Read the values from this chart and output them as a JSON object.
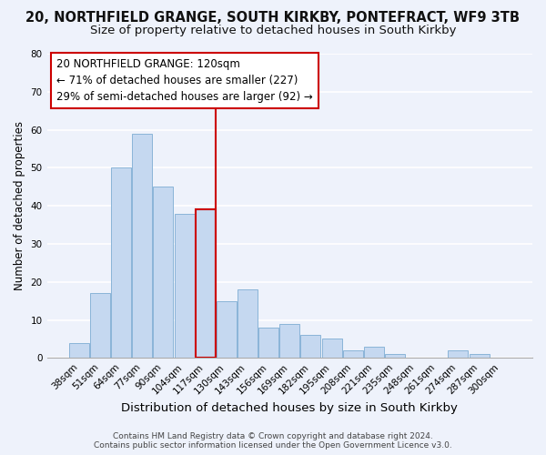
{
  "title_line1": "20, NORTHFIELD GRANGE, SOUTH KIRKBY, PONTEFRACT, WF9 3TB",
  "title_line2": "Size of property relative to detached houses in South Kirkby",
  "xlabel": "Distribution of detached houses by size in South Kirkby",
  "ylabel": "Number of detached properties",
  "bar_labels": [
    "38sqm",
    "51sqm",
    "64sqm",
    "77sqm",
    "90sqm",
    "104sqm",
    "117sqm",
    "130sqm",
    "143sqm",
    "156sqm",
    "169sqm",
    "182sqm",
    "195sqm",
    "208sqm",
    "221sqm",
    "235sqm",
    "248sqm",
    "261sqm",
    "274sqm",
    "287sqm",
    "300sqm"
  ],
  "bar_values": [
    4,
    17,
    50,
    59,
    45,
    38,
    39,
    15,
    18,
    8,
    9,
    6,
    5,
    2,
    3,
    1,
    0,
    0,
    2,
    1,
    0
  ],
  "bar_color": "#c5d8f0",
  "bar_edge_color": "#8ab4d8",
  "highlight_index": 6,
  "highlight_edge_color": "#cc0000",
  "vline_x": 6.5,
  "vline_color": "#cc0000",
  "annotation_title": "20 NORTHFIELD GRANGE: 120sqm",
  "annotation_line1": "← 71% of detached houses are smaller (227)",
  "annotation_line2": "29% of semi-detached houses are larger (92) →",
  "annotation_box_color": "#ffffff",
  "annotation_box_edge": "#cc0000",
  "ylim": [
    0,
    80
  ],
  "yticks": [
    0,
    10,
    20,
    30,
    40,
    50,
    60,
    70,
    80
  ],
  "footnote1": "Contains HM Land Registry data © Crown copyright and database right 2024.",
  "footnote2": "Contains public sector information licensed under the Open Government Licence v3.0.",
  "bg_color": "#eef2fb",
  "grid_color": "#ffffff",
  "title_fontsize": 10.5,
  "subtitle_fontsize": 9.5,
  "xlabel_fontsize": 9.5,
  "ylabel_fontsize": 8.5,
  "tick_fontsize": 7.5,
  "annotation_fontsize": 8.5,
  "footnote_fontsize": 6.5
}
